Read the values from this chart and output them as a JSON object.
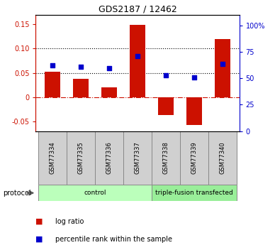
{
  "title": "GDS2187 / 12462",
  "samples": [
    "GSM77334",
    "GSM77335",
    "GSM77336",
    "GSM77337",
    "GSM77338",
    "GSM77339",
    "GSM77340"
  ],
  "log_ratio": [
    0.052,
    0.038,
    0.02,
    0.149,
    -0.037,
    -0.057,
    0.12
  ],
  "percentile_rank": [
    0.065,
    0.062,
    0.059,
    0.085,
    0.045,
    0.04,
    0.068
  ],
  "ylim_left": [
    -0.07,
    0.17
  ],
  "ylim_right": [
    0,
    110
  ],
  "yticks_left": [
    -0.05,
    0.0,
    0.05,
    0.1,
    0.15
  ],
  "yticks_right": [
    0,
    25,
    50,
    75,
    100
  ],
  "ytick_labels_left": [
    "-0.05",
    "0",
    "0.05",
    "0.10",
    "0.15"
  ],
  "ytick_labels_right": [
    "0",
    "25",
    "50",
    "75",
    "100%"
  ],
  "hlines_dotted": [
    0.05,
    0.1
  ],
  "hline_dashdot": 0.0,
  "bar_color": "#cc1100",
  "dot_color": "#0000cc",
  "protocol_groups": [
    {
      "label": "control",
      "start": 0,
      "end": 3,
      "color": "#bbffbb"
    },
    {
      "label": "triple-fusion transfected",
      "start": 4,
      "end": 6,
      "color": "#99ee99"
    }
  ],
  "protocol_label": "protocol",
  "legend_items": [
    {
      "color": "#cc1100",
      "label": "log ratio"
    },
    {
      "color": "#0000cc",
      "label": "percentile rank within the sample"
    }
  ],
  "bar_width": 0.55
}
